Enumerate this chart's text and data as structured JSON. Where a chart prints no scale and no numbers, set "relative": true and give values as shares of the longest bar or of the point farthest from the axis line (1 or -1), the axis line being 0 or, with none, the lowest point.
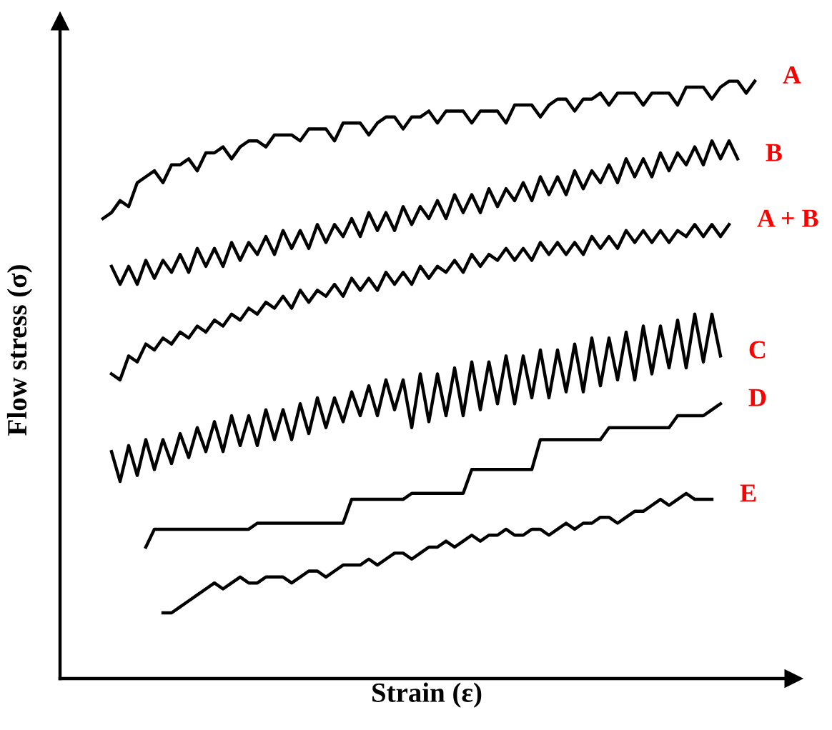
{
  "chart_data": {
    "type": "line",
    "relative": true,
    "xlabel": "Strain (ε)",
    "ylabel": "Flow stress (σ)",
    "marker": "none",
    "line_style": "solid",
    "categories": [
      null,
      null,
      null,
      null,
      null,
      null,
      null,
      null,
      null,
      null,
      null,
      null,
      null,
      null,
      null,
      null,
      null,
      null,
      null,
      null,
      null,
      null,
      null,
      null,
      null,
      null,
      null,
      null,
      null,
      null,
      null,
      null,
      null,
      null,
      null,
      null,
      null,
      null,
      null,
      null,
      null,
      null,
      null,
      null,
      null,
      null,
      null,
      null,
      null,
      null,
      null,
      null,
      null,
      null,
      null,
      null,
      null,
      null,
      null,
      null,
      null,
      null,
      null,
      null,
      null,
      null,
      null,
      null,
      null,
      null,
      null,
      null,
      null,
      null,
      null,
      null,
      null
    ],
    "series": [
      {
        "name": "A",
        "color": "#000000",
        "values": [
          0.77,
          0.78,
          0.8,
          0.79,
          0.83,
          0.84,
          0.85,
          0.83,
          0.86,
          0.86,
          0.87,
          0.85,
          0.88,
          0.88,
          0.89,
          0.87,
          0.89,
          0.9,
          0.9,
          0.89,
          0.91,
          0.91,
          0.91,
          0.9,
          0.92,
          0.92,
          0.92,
          0.9,
          0.93,
          0.93,
          0.93,
          0.91,
          0.93,
          0.94,
          0.94,
          0.92,
          0.94,
          0.94,
          0.95,
          0.93,
          0.95,
          0.95,
          0.95,
          0.93,
          0.95,
          0.95,
          0.95,
          0.93,
          0.96,
          0.96,
          0.96,
          0.94,
          0.96,
          0.97,
          0.97,
          0.95,
          0.97,
          0.97,
          0.98,
          0.96,
          0.98,
          0.98,
          0.98,
          0.96,
          0.98,
          0.98,
          0.98,
          0.96,
          0.99,
          0.99,
          0.99,
          0.97,
          0.99,
          1.0,
          1.0,
          0.98,
          1.0
        ]
      },
      {
        "name": "B",
        "color": "#000000",
        "values": [
          null,
          0.69,
          0.66,
          0.69,
          0.66,
          0.7,
          0.67,
          0.7,
          0.68,
          0.71,
          0.68,
          0.72,
          0.69,
          0.72,
          0.69,
          0.73,
          0.7,
          0.73,
          0.71,
          0.74,
          0.71,
          0.75,
          0.72,
          0.75,
          0.72,
          0.76,
          0.73,
          0.76,
          0.74,
          0.77,
          0.74,
          0.78,
          0.75,
          0.78,
          0.75,
          0.79,
          0.76,
          0.79,
          0.77,
          0.8,
          0.77,
          0.81,
          0.78,
          0.81,
          0.78,
          0.82,
          0.79,
          0.82,
          0.8,
          0.83,
          0.8,
          0.84,
          0.81,
          0.84,
          0.81,
          0.85,
          0.82,
          0.85,
          0.83,
          0.86,
          0.83,
          0.87,
          0.84,
          0.87,
          0.84,
          0.88,
          0.85,
          0.88,
          0.86,
          0.89,
          0.86,
          0.9,
          0.87,
          0.9,
          0.87,
          null,
          null
        ]
      },
      {
        "name": "A + B",
        "color": "#000000",
        "values": [
          null,
          0.51,
          0.5,
          0.54,
          0.53,
          0.56,
          0.55,
          0.57,
          0.56,
          0.58,
          0.57,
          0.59,
          0.58,
          0.6,
          0.59,
          0.61,
          0.6,
          0.62,
          0.61,
          0.63,
          0.62,
          0.64,
          0.62,
          0.65,
          0.63,
          0.65,
          0.64,
          0.66,
          0.64,
          0.67,
          0.65,
          0.67,
          0.65,
          0.68,
          0.66,
          0.68,
          0.66,
          0.69,
          0.67,
          0.69,
          0.68,
          0.7,
          0.68,
          0.71,
          0.69,
          0.71,
          0.7,
          0.72,
          0.7,
          0.72,
          0.7,
          0.73,
          0.71,
          0.73,
          0.71,
          0.73,
          0.71,
          0.74,
          0.72,
          0.74,
          0.72,
          0.75,
          0.73,
          0.75,
          0.73,
          0.75,
          0.73,
          0.75,
          0.74,
          0.76,
          0.74,
          0.76,
          0.74,
          0.76,
          null,
          null,
          null
        ]
      },
      {
        "name": "C",
        "color": "#000000",
        "values": [
          null,
          0.38,
          0.33,
          0.39,
          0.34,
          0.4,
          0.35,
          0.4,
          0.36,
          0.41,
          0.37,
          0.42,
          0.38,
          0.43,
          0.38,
          0.44,
          0.39,
          0.44,
          0.39,
          0.45,
          0.4,
          0.45,
          0.4,
          0.46,
          0.41,
          0.47,
          0.42,
          0.47,
          0.43,
          0.48,
          0.44,
          0.49,
          0.44,
          0.5,
          0.45,
          0.5,
          0.42,
          0.51,
          0.43,
          0.51,
          0.44,
          0.52,
          0.44,
          0.53,
          0.45,
          0.53,
          0.46,
          0.54,
          0.46,
          0.54,
          0.47,
          0.55,
          0.47,
          0.55,
          0.48,
          0.56,
          0.48,
          0.57,
          0.49,
          0.57,
          0.5,
          0.58,
          0.5,
          0.59,
          0.51,
          0.59,
          0.52,
          0.6,
          0.52,
          0.61,
          0.53,
          0.61,
          0.54,
          null,
          null,
          null,
          null
        ]
      },
      {
        "name": "D",
        "color": "#000000",
        "values": [
          null,
          null,
          null,
          null,
          null,
          0.22,
          0.25,
          0.25,
          0.25,
          0.25,
          0.25,
          0.25,
          0.25,
          0.25,
          0.25,
          0.25,
          0.25,
          0.25,
          0.26,
          0.26,
          0.26,
          0.26,
          0.26,
          0.26,
          0.26,
          0.26,
          0.26,
          0.26,
          0.26,
          0.3,
          0.3,
          0.3,
          0.3,
          0.3,
          0.3,
          0.3,
          0.31,
          0.31,
          0.31,
          0.31,
          0.31,
          0.31,
          0.31,
          0.35,
          0.35,
          0.35,
          0.35,
          0.35,
          0.35,
          0.35,
          0.35,
          0.4,
          0.4,
          0.4,
          0.4,
          0.4,
          0.4,
          0.4,
          0.4,
          0.42,
          0.42,
          0.42,
          0.42,
          0.42,
          0.42,
          0.42,
          0.42,
          0.44,
          0.44,
          0.44,
          0.44,
          0.45,
          0.46,
          null,
          null,
          null,
          null
        ]
      },
      {
        "name": "E",
        "color": "#000000",
        "values": [
          null,
          null,
          null,
          null,
          null,
          null,
          null,
          0.11,
          0.11,
          0.12,
          0.13,
          0.14,
          0.15,
          0.16,
          0.15,
          0.16,
          0.17,
          0.16,
          0.16,
          0.17,
          0.17,
          0.17,
          0.16,
          0.17,
          0.18,
          0.18,
          0.17,
          0.18,
          0.19,
          0.19,
          0.19,
          0.2,
          0.19,
          0.2,
          0.21,
          0.21,
          0.2,
          0.21,
          0.22,
          0.22,
          0.23,
          0.22,
          0.23,
          0.24,
          0.23,
          0.24,
          0.24,
          0.25,
          0.24,
          0.24,
          0.25,
          0.25,
          0.24,
          0.25,
          0.26,
          0.25,
          0.26,
          0.26,
          0.27,
          0.27,
          0.26,
          0.27,
          0.28,
          0.28,
          0.29,
          0.3,
          0.29,
          0.3,
          0.31,
          0.3,
          0.3,
          0.3,
          null,
          null,
          null,
          null,
          null
        ]
      }
    ]
  }
}
